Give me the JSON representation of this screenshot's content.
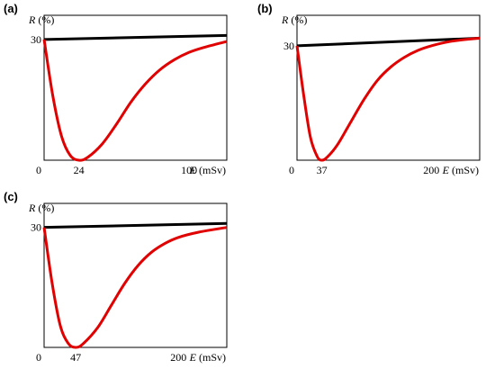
{
  "chart_data": [
    {
      "type": "line",
      "panel": "(a)",
      "ylabel": {
        "symbol": "R",
        "unit": "(%)"
      },
      "xlabel": {
        "symbol": "E",
        "unit": "(mSv)"
      },
      "x_ticks": [
        0,
        24,
        100
      ],
      "y_ticks": [
        30
      ],
      "xlim": [
        0,
        126
      ],
      "ylim": [
        0,
        36
      ],
      "minimum_x": 24,
      "series": [
        {
          "color": "#000000",
          "x": [
            0,
            126
          ],
          "y": [
            30,
            31
          ]
        },
        {
          "color": "#e10000",
          "x": [
            0,
            6,
            12,
            18,
            24,
            30,
            40,
            50,
            60,
            70,
            80,
            90,
            100,
            110,
            126
          ],
          "y": [
            30,
            16,
            6,
            1.2,
            0,
            0.7,
            4,
            9,
            14.5,
            19,
            22.5,
            25,
            26.8,
            28,
            29.5
          ]
        }
      ]
    },
    {
      "type": "line",
      "panel": "(b)",
      "ylabel": {
        "symbol": "R",
        "unit": "(%)"
      },
      "xlabel": {
        "symbol": "E",
        "unit": "(mSv)"
      },
      "x_ticks": [
        0,
        37,
        200
      ],
      "y_ticks": [
        30
      ],
      "xlim": [
        0,
        272
      ],
      "ylim": [
        0,
        38
      ],
      "minimum_x": 37,
      "series": [
        {
          "color": "#000000",
          "x": [
            0,
            272
          ],
          "y": [
            30,
            32
          ]
        },
        {
          "color": "#e10000",
          "x": [
            0,
            10,
            20,
            30,
            37,
            45,
            60,
            80,
            100,
            120,
            140,
            160,
            180,
            200,
            230,
            272
          ],
          "y": [
            30,
            17,
            6,
            1,
            0,
            0.8,
            4,
            10,
            16,
            21,
            24.5,
            27,
            28.8,
            30,
            31.2,
            32
          ]
        }
      ]
    },
    {
      "type": "line",
      "panel": "(c)",
      "ylabel": {
        "symbol": "R",
        "unit": "(%)"
      },
      "xlabel": {
        "symbol": "E",
        "unit": "(mSv)"
      },
      "x_ticks": [
        0,
        47,
        200
      ],
      "y_ticks": [
        30
      ],
      "xlim": [
        0,
        272
      ],
      "ylim": [
        0,
        36
      ],
      "minimum_x": 47,
      "series": [
        {
          "color": "#000000",
          "x": [
            0,
            272
          ],
          "y": [
            30,
            31
          ]
        },
        {
          "color": "#e10000",
          "x": [
            0,
            12,
            24,
            36,
            47,
            58,
            80,
            100,
            120,
            140,
            160,
            180,
            200,
            230,
            272
          ],
          "y": [
            30,
            16,
            5.5,
            1,
            0,
            0.9,
            5,
            10.5,
            16,
            20.5,
            23.8,
            26,
            27.5,
            28.8,
            30
          ]
        }
      ]
    }
  ]
}
